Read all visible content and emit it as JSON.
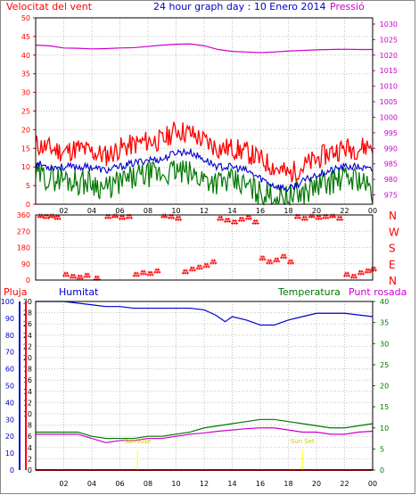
{
  "header": {
    "wind_label": "Velocitat del vent",
    "title": "24 hour graph day : 10 Enero 2014",
    "pressure_label": "Pressió"
  },
  "legend2": {
    "rain_label": "Pluja",
    "humidity_label": "Humitat",
    "temp_label": "Temperatura",
    "dew_label": "Punt rosada"
  },
  "direction_labels": [
    "N",
    "W",
    "S",
    "E",
    "N"
  ],
  "sun": {
    "rise_label": "Sun Rise",
    "set_label": "Sun Set",
    "rise_hour": 7.25,
    "set_hour": 19.0
  },
  "colors": {
    "wind_avg": "#0000cc",
    "wind_gust": "#ff0000",
    "wind_low": "#007700",
    "pressure": "#cc00cc",
    "direction": "#ff0000",
    "humidity": "#0000cc",
    "temperature": "#007700",
    "dew_point": "#cc00cc",
    "rain": "#ff0000",
    "sun": "#ffff00"
  },
  "chart_data": [
    {
      "type": "line",
      "title": "24 hour graph day : 10 Enero 2014",
      "x_ticks": [
        "02",
        "04",
        "06",
        "08",
        "10",
        "12",
        "14",
        "16",
        "18",
        "20",
        "22",
        "00"
      ],
      "y_left_ticks": [
        0,
        5,
        10,
        15,
        20,
        25,
        30,
        35,
        40,
        45,
        50
      ],
      "y_left_label": "Velocitat del vent",
      "y_left_range": [
        0,
        50
      ],
      "y_right_ticks": [
        975,
        980,
        985,
        990,
        995,
        1000,
        1005,
        1010,
        1015,
        1020,
        1025,
        1030
      ],
      "y_right_label": "Pressió",
      "y_right_range": [
        972,
        1032
      ],
      "series": [
        {
          "name": "Velocitat del vent",
          "axis": "left",
          "kind": "gust",
          "x": [
            0,
            1,
            2,
            3,
            4,
            5,
            6,
            7,
            8,
            9,
            10,
            11,
            12,
            13,
            14,
            15,
            16,
            17,
            18,
            19,
            20,
            21,
            22,
            23,
            24
          ],
          "y": [
            16,
            15,
            14,
            15,
            14,
            13,
            15,
            16,
            17,
            17,
            20,
            19,
            17,
            15,
            15,
            14,
            12,
            10,
            8,
            10,
            12,
            14,
            15,
            15,
            16
          ]
        },
        {
          "kind": "average",
          "axis": "left",
          "x": [
            0,
            1,
            2,
            3,
            4,
            5,
            6,
            7,
            8,
            9,
            10,
            11,
            12,
            13,
            14,
            15,
            16,
            17,
            18,
            19,
            20,
            21,
            22,
            23,
            24
          ],
          "y": [
            11,
            10,
            10,
            10,
            10,
            9,
            10,
            11,
            12,
            12,
            14,
            14,
            12,
            10,
            10,
            9,
            7,
            5,
            4,
            6,
            8,
            9,
            10,
            10,
            9
          ]
        },
        {
          "kind": "low",
          "axis": "left",
          "x": [
            0,
            1,
            2,
            3,
            4,
            5,
            6,
            7,
            8,
            9,
            10,
            11,
            12,
            13,
            14,
            15,
            16,
            17,
            18,
            19,
            20,
            21,
            22,
            23,
            24
          ],
          "y": [
            8,
            7,
            7,
            6,
            6,
            4,
            6,
            7,
            8,
            8,
            9,
            8,
            7,
            6,
            6,
            5,
            3,
            2,
            2,
            3,
            5,
            6,
            7,
            7,
            3
          ]
        },
        {
          "name": "Pressió",
          "axis": "right",
          "x": [
            0,
            1,
            2,
            3,
            4,
            5,
            6,
            7,
            8,
            9,
            10,
            11,
            12,
            13,
            14,
            15,
            16,
            17,
            18,
            19,
            20,
            21,
            22,
            23,
            24
          ],
          "y": [
            1023.2,
            1023.0,
            1022.3,
            1022.2,
            1022.0,
            1022.1,
            1022.3,
            1022.4,
            1022.8,
            1023.2,
            1023.5,
            1023.6,
            1023.0,
            1021.8,
            1021.2,
            1021.0,
            1020.8,
            1021.0,
            1021.3,
            1021.5,
            1021.7,
            1021.8,
            1021.9,
            1021.8,
            1021.8
          ]
        }
      ]
    },
    {
      "type": "scatter",
      "y_left_ticks": [
        0,
        90,
        180,
        270,
        360
      ],
      "y_range": [
        0,
        360
      ],
      "direction_labels": [
        "N",
        "W",
        "S",
        "E",
        "N"
      ],
      "x_ticks": [
        "02",
        "04",
        "06",
        "08",
        "10",
        "12",
        "14",
        "16",
        "18",
        "20",
        "22",
        "00"
      ],
      "series": [
        {
          "kind": "direction",
          "x": [
            0.2,
            0.6,
            1.0,
            1.4,
            2.0,
            2.5,
            3.0,
            3.5,
            4.2,
            5.0,
            5.5,
            6.0,
            6.5,
            7.0,
            7.5,
            8.0,
            8.5,
            9.0,
            9.5,
            10.0,
            10.5,
            11.0,
            11.5,
            12.0,
            12.5,
            13.0,
            13.5,
            14.0,
            14.5,
            15.0,
            15.5,
            16.0,
            16.5,
            17.0,
            17.5,
            18.0,
            18.5,
            19.0,
            19.5,
            20.0,
            20.5,
            21.0,
            21.5,
            22.0,
            22.5,
            23.0,
            23.5,
            23.9
          ],
          "y": [
            355,
            350,
            355,
            345,
            30,
            20,
            15,
            25,
            10,
            350,
            355,
            345,
            350,
            30,
            40,
            35,
            50,
            355,
            350,
            340,
            45,
            60,
            70,
            80,
            100,
            340,
            330,
            320,
            335,
            345,
            320,
            120,
            100,
            110,
            130,
            100,
            350,
            340,
            355,
            345,
            350,
            355,
            340,
            30,
            20,
            40,
            50,
            60
          ]
        }
      ]
    },
    {
      "type": "line",
      "x_ticks": [
        "02",
        "04",
        "06",
        "08",
        "10",
        "12",
        "14",
        "16",
        "18",
        "20",
        "22",
        "00"
      ],
      "y_rain_ticks": [
        0,
        2,
        4,
        6,
        8,
        10,
        12,
        14,
        16,
        18,
        20,
        22,
        24,
        26,
        28,
        30
      ],
      "y_humidity_ticks": [
        0,
        10,
        20,
        30,
        40,
        50,
        60,
        70,
        80,
        90,
        100
      ],
      "y_temp_ticks": [
        0,
        5,
        10,
        15,
        20,
        25,
        30,
        35,
        40
      ],
      "rain_range": [
        0,
        30
      ],
      "humidity_range": [
        0,
        100
      ],
      "temp_range": [
        0,
        40
      ],
      "series": [
        {
          "name": "Humitat",
          "axis": "humidity",
          "x": [
            0,
            1,
            2,
            3,
            4,
            5,
            6,
            7,
            8,
            9,
            10,
            11,
            12,
            12.8,
            13.5,
            14,
            15,
            16,
            17,
            18,
            19,
            20,
            21,
            22,
            23,
            24
          ],
          "y": [
            100,
            100,
            100,
            99,
            98,
            97,
            97,
            96,
            96,
            96,
            96,
            96,
            95,
            92,
            88,
            91,
            89,
            86,
            86,
            89,
            91,
            93,
            93,
            93,
            92,
            91
          ]
        },
        {
          "name": "Temperatura",
          "axis": "temp",
          "x": [
            0,
            1,
            2,
            3,
            4,
            5,
            6,
            7,
            8,
            9,
            10,
            11,
            12,
            13,
            14,
            15,
            16,
            17,
            18,
            19,
            20,
            21,
            22,
            23,
            24
          ],
          "y": [
            9,
            9,
            9,
            9,
            8,
            7.5,
            7.5,
            7.5,
            8,
            8,
            8.5,
            9,
            10,
            10.5,
            11,
            11.5,
            12,
            12,
            11.5,
            11,
            10.5,
            10,
            10,
            10.5,
            11
          ]
        },
        {
          "name": "Punt rosada",
          "axis": "temp",
          "x": [
            0,
            1,
            2,
            3,
            4,
            5,
            6,
            7,
            8,
            9,
            10,
            11,
            12,
            13,
            14,
            15,
            16,
            17,
            18,
            19,
            20,
            21,
            22,
            23,
            24
          ],
          "y": [
            8.5,
            8.5,
            8.5,
            8.5,
            7.5,
            6.5,
            7,
            7,
            7.5,
            7.5,
            8,
            8.5,
            8.8,
            9.2,
            9.5,
            9.8,
            10,
            10,
            9.5,
            9,
            9,
            8.5,
            8.5,
            9,
            9.2
          ]
        },
        {
          "name": "Pluja",
          "axis": "rain",
          "x": [
            0,
            24
          ],
          "y": [
            0,
            0
          ]
        }
      ]
    }
  ]
}
